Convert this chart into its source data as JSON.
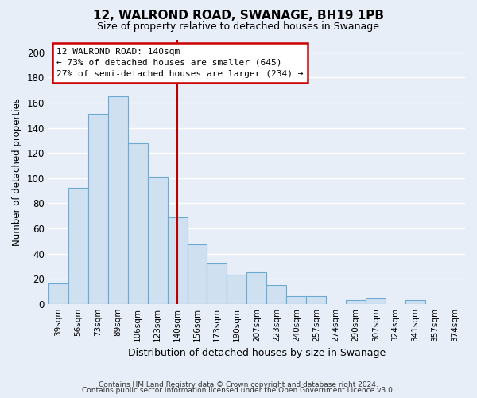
{
  "title": "12, WALROND ROAD, SWANAGE, BH19 1PB",
  "subtitle": "Size of property relative to detached houses in Swanage",
  "xlabel": "Distribution of detached houses by size in Swanage",
  "ylabel": "Number of detached properties",
  "bar_labels": [
    "39sqm",
    "56sqm",
    "73sqm",
    "89sqm",
    "106sqm",
    "123sqm",
    "140sqm",
    "156sqm",
    "173sqm",
    "190sqm",
    "207sqm",
    "223sqm",
    "240sqm",
    "257sqm",
    "274sqm",
    "290sqm",
    "307sqm",
    "324sqm",
    "341sqm",
    "357sqm",
    "374sqm"
  ],
  "bar_values": [
    16,
    92,
    151,
    165,
    128,
    101,
    69,
    47,
    32,
    23,
    25,
    15,
    6,
    6,
    0,
    3,
    4,
    0,
    3,
    0,
    0
  ],
  "bar_color": "#cfe0f0",
  "bar_edge_color": "#6aaad4",
  "vline_index": 6,
  "vline_color": "#bb0000",
  "annotation_title": "12 WALROND ROAD: 140sqm",
  "annotation_line1": "← 73% of detached houses are smaller (645)",
  "annotation_line2": "27% of semi-detached houses are larger (234) →",
  "annotation_box_edge": "#cc0000",
  "annotation_box_face": "#ffffff",
  "ylim": [
    0,
    210
  ],
  "yticks": [
    0,
    20,
    40,
    60,
    80,
    100,
    120,
    140,
    160,
    180,
    200
  ],
  "footer_line1": "Contains HM Land Registry data © Crown copyright and database right 2024.",
  "footer_line2": "Contains public sector information licensed under the Open Government Licence v3.0.",
  "bg_color": "#e8eef8",
  "grid_color": "#ffffff"
}
